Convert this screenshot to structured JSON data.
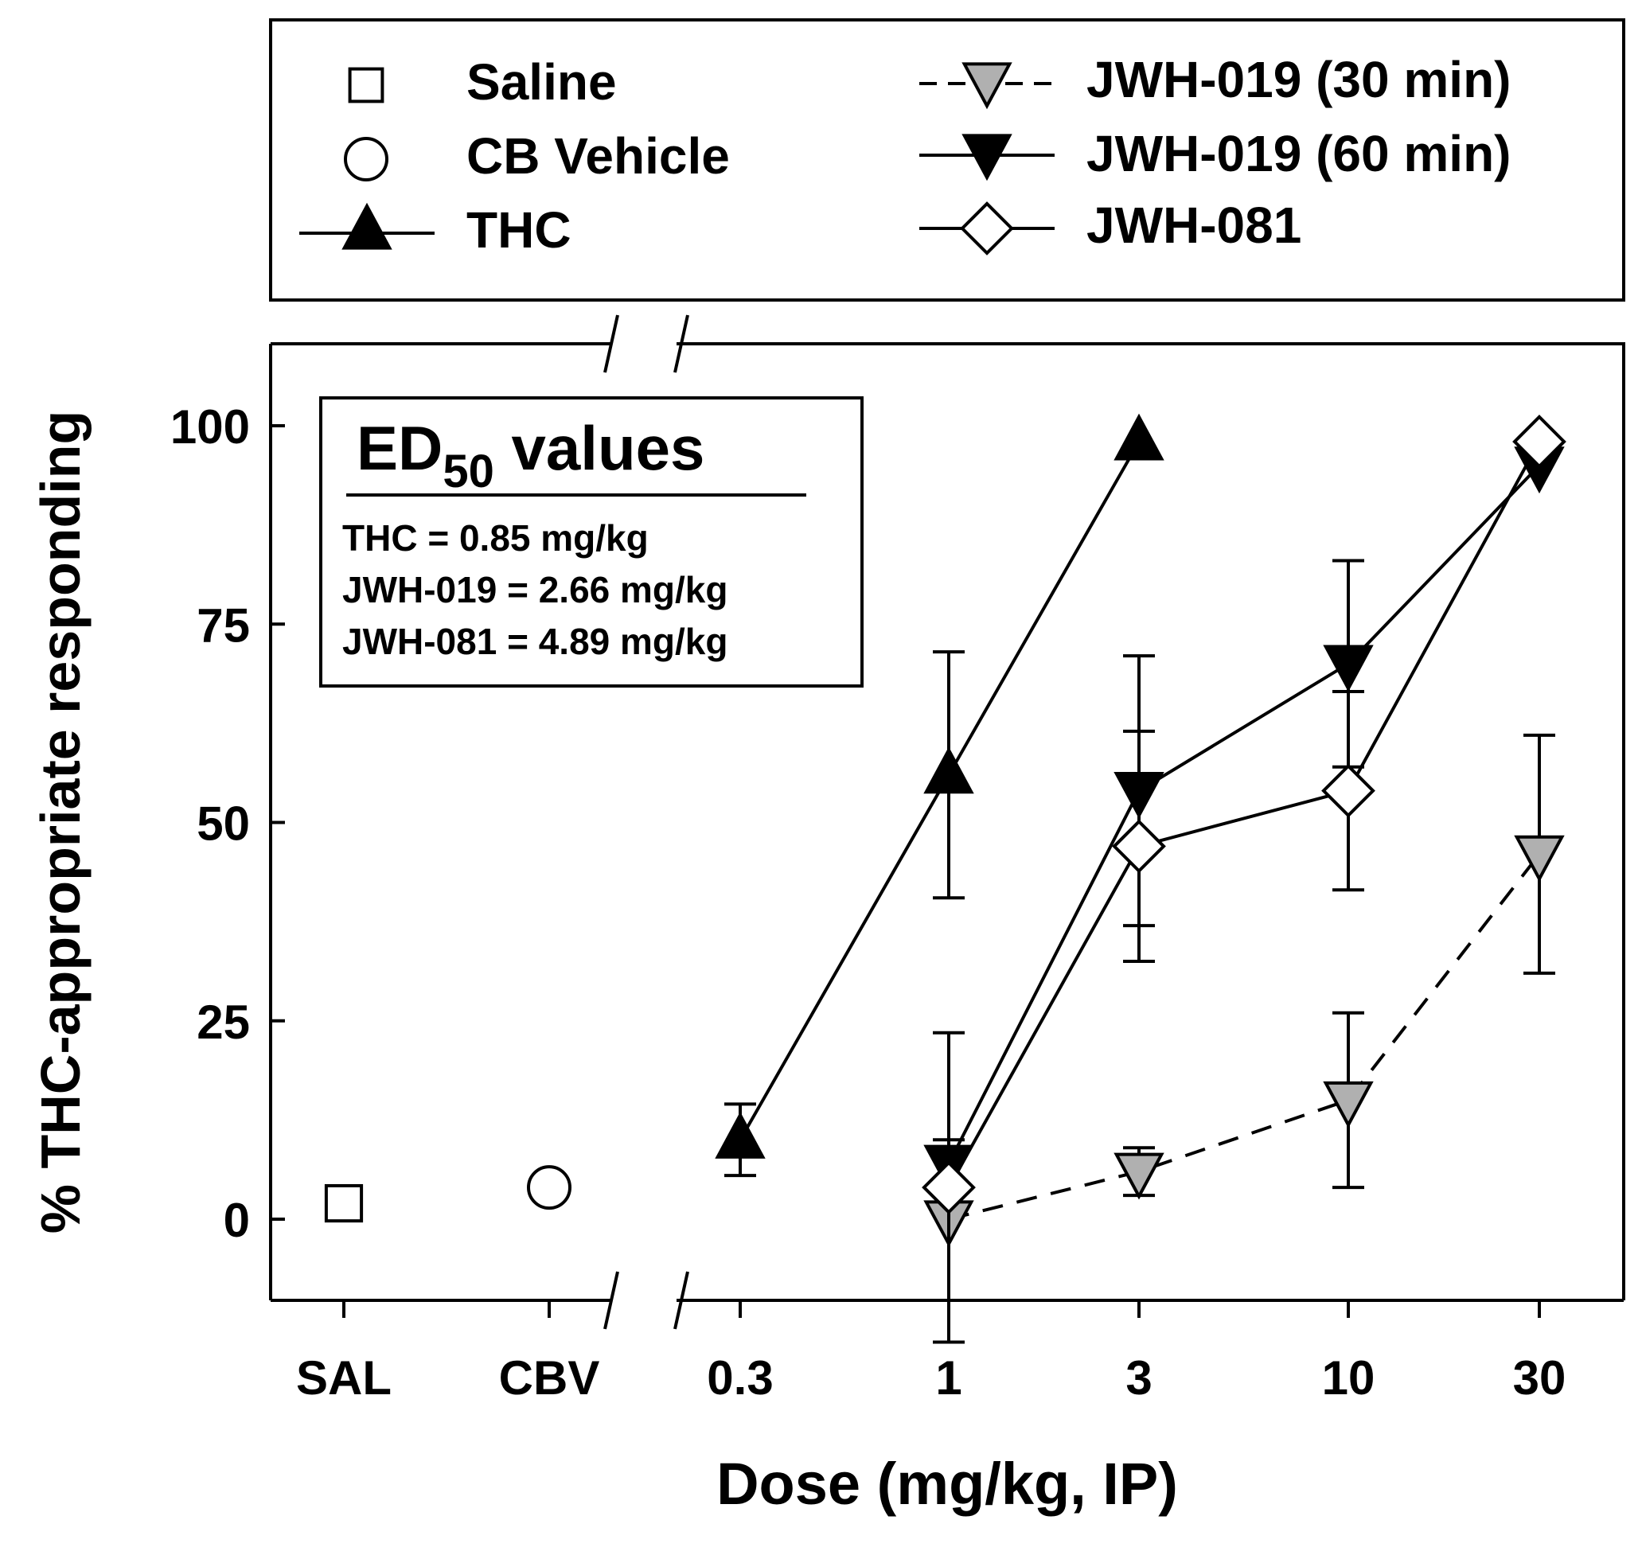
{
  "chart_data": {
    "type": "line",
    "title": "",
    "xlabel": "Dose (mg/kg, IP)",
    "ylabel": "% THC-appropriate responding",
    "ylim": [
      -10,
      110
    ],
    "y_ticks": [
      "0",
      "25",
      "50",
      "75",
      "100"
    ],
    "x_categories": [
      "SAL",
      "CBV",
      "0.3",
      "1",
      "3",
      "10",
      "30"
    ],
    "x_scale": "categorical controls, then log dose",
    "axis_break": "between CBV and 0.3",
    "controls": [
      {
        "name": "Saline",
        "x": "SAL",
        "y": 2,
        "marker": "square-open"
      },
      {
        "name": "CB Vehicle",
        "x": "CBV",
        "y": 4,
        "marker": "circle-open"
      }
    ],
    "series": [
      {
        "name": "THC",
        "marker": "triangle-up-filled",
        "line": "solid",
        "color": "#000000",
        "x": [
          0.3,
          1,
          3
        ],
        "y": [
          10,
          56,
          98
        ],
        "err": [
          4.5,
          15.5,
          0
        ]
      },
      {
        "name": "JWH-019 (30 min)",
        "marker": "triangle-down-gray",
        "line": "dashed",
        "color": "#b0b0b0",
        "x": [
          1,
          3,
          10,
          30
        ],
        "y": [
          0,
          6,
          15,
          46
        ],
        "err": [
          0,
          3,
          11,
          15
        ]
      },
      {
        "name": "JWH-019 (60 min)",
        "marker": "triangle-down-filled",
        "line": "solid",
        "color": "#000000",
        "x": [
          1,
          3,
          10,
          30
        ],
        "y": [
          7,
          54,
          70,
          95
        ],
        "err": [
          3,
          17,
          13,
          0
        ]
      },
      {
        "name": "JWH-081",
        "marker": "diamond-open",
        "line": "solid",
        "color": "#ffffff",
        "x": [
          1,
          3,
          10,
          30
        ],
        "y": [
          4,
          47,
          54,
          98
        ],
        "err": [
          19.5,
          14.5,
          12.5,
          0
        ]
      }
    ],
    "legend": {
      "placement": "top, outside plot",
      "entries": [
        "Saline",
        "CB Vehicle",
        "THC",
        "JWH-019 (30 min)",
        "JWH-019 (60 min)",
        "JWH-081"
      ]
    },
    "annotation": {
      "title_main": "ED",
      "title_sub": "50",
      "title_rest": " values",
      "lines": [
        "THC = 0.85 mg/kg",
        "JWH-019 = 2.66 mg/kg",
        "JWH-081 = 4.89 mg/kg"
      ]
    }
  }
}
